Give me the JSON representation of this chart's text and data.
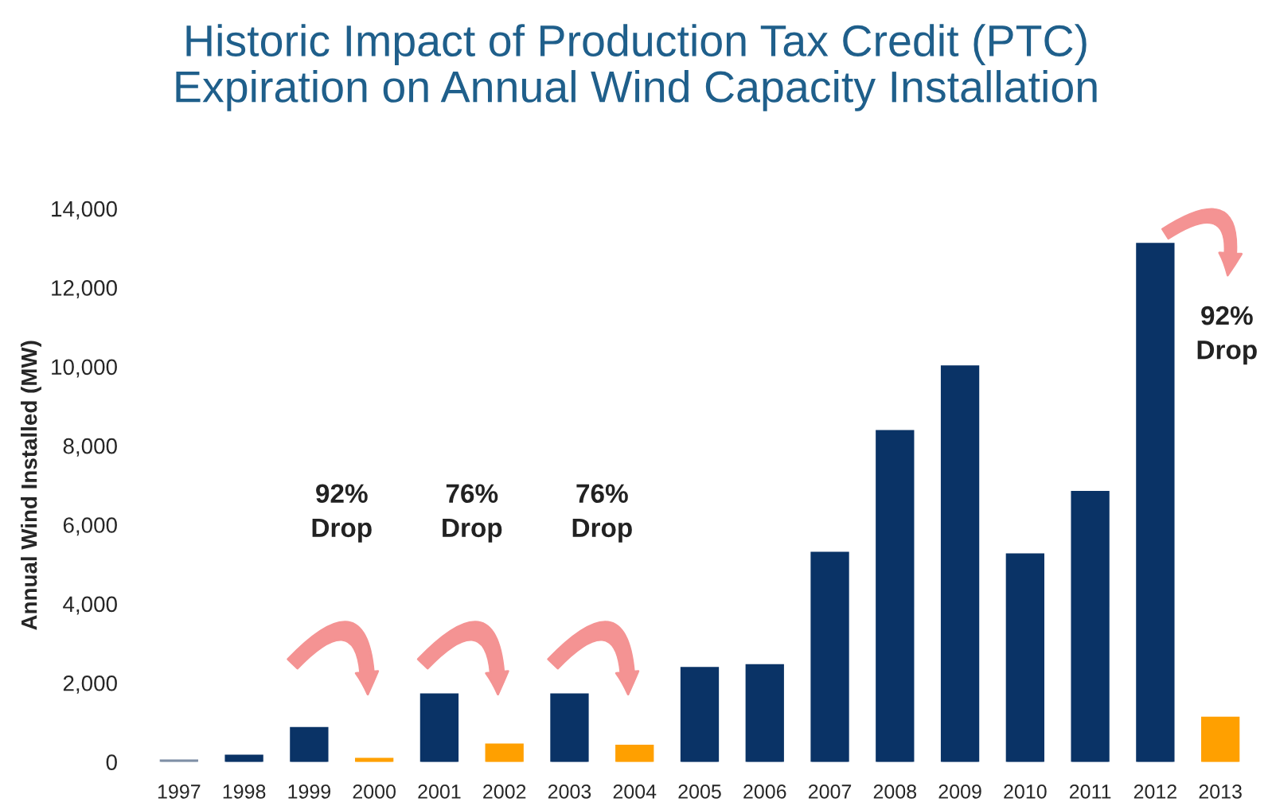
{
  "chart_data": {
    "type": "bar",
    "title": "Historic Impact of Production Tax Credit (PTC)\nExpiration on Annual Wind Capacity Installation",
    "ylabel": "Annual Wind Installed (MW)",
    "categories": [
      "1997",
      "1998",
      "1999",
      "2000",
      "2001",
      "2002",
      "2003",
      "2004",
      "2005",
      "2006",
      "2007",
      "2008",
      "2009",
      "2010",
      "2011",
      "2012",
      "2013"
    ],
    "values": [
      30,
      150,
      850,
      70,
      1700,
      430,
      1700,
      400,
      2370,
      2440,
      5280,
      8360,
      10000,
      5240,
      6820,
      13100,
      1110
    ],
    "colors": [
      "#7f8fa6",
      "#0a3366",
      "#0a3366",
      "#ffa000",
      "#0a3366",
      "#ffa000",
      "#0a3366",
      "#ffa000",
      "#0a3366",
      "#0a3366",
      "#0a3366",
      "#0a3366",
      "#0a3366",
      "#0a3366",
      "#0a3366",
      "#0a3366",
      "#ffa000"
    ],
    "ylim": [
      0,
      14000
    ],
    "yticks": [
      {
        "value": 0,
        "label": "0"
      },
      {
        "value": 2000,
        "label": "2,000"
      },
      {
        "value": 4000,
        "label": "4,000"
      },
      {
        "value": 6000,
        "label": "6,000"
      },
      {
        "value": 8000,
        "label": "8,000"
      },
      {
        "value": 10000,
        "label": "10,000"
      },
      {
        "value": 12000,
        "label": "12,000"
      },
      {
        "value": 14000,
        "label": "14,000"
      }
    ],
    "annotations": [
      "92%\nDrop",
      "76%\nDrop",
      "76%\nDrop",
      "92%\nDrop"
    ],
    "grid": false,
    "legend": false
  }
}
